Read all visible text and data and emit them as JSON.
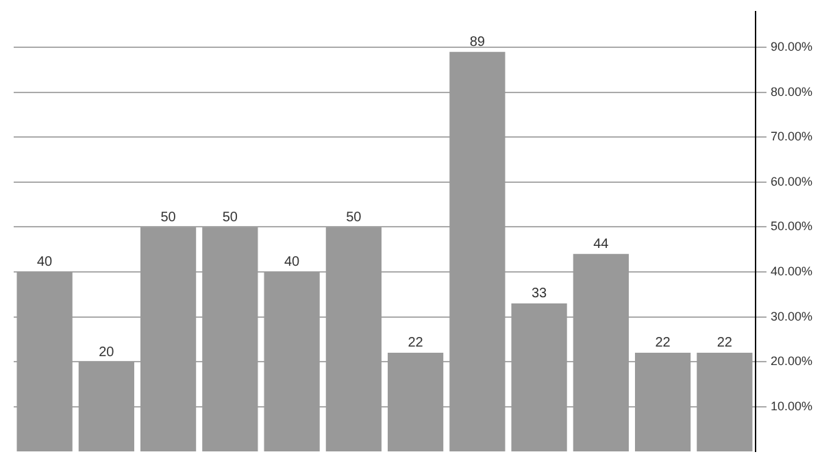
{
  "chart_data": {
    "type": "bar",
    "categories": [
      null,
      null,
      null,
      null,
      null,
      null,
      null,
      null,
      null,
      null,
      null,
      null
    ],
    "values": [
      40,
      20,
      50,
      50,
      40,
      50,
      22,
      89,
      33,
      44,
      22,
      22
    ],
    "color": "#999999",
    "data_labels": true,
    "grid": "y",
    "legend": false,
    "ylim": [
      0,
      98
    ],
    "yticks": [
      {
        "value": 10,
        "label": "10.00%"
      },
      {
        "value": 20,
        "label": "20.00%"
      },
      {
        "value": 30,
        "label": "30.00%"
      },
      {
        "value": 40,
        "label": "40.00%"
      },
      {
        "value": 50,
        "label": "50.00%"
      },
      {
        "value": 60,
        "label": "60.00%"
      },
      {
        "value": 70,
        "label": "70.00%"
      },
      {
        "value": 80,
        "label": "80.00%"
      },
      {
        "value": 90,
        "label": "90.00%"
      }
    ],
    "tick_labels": "y"
  }
}
